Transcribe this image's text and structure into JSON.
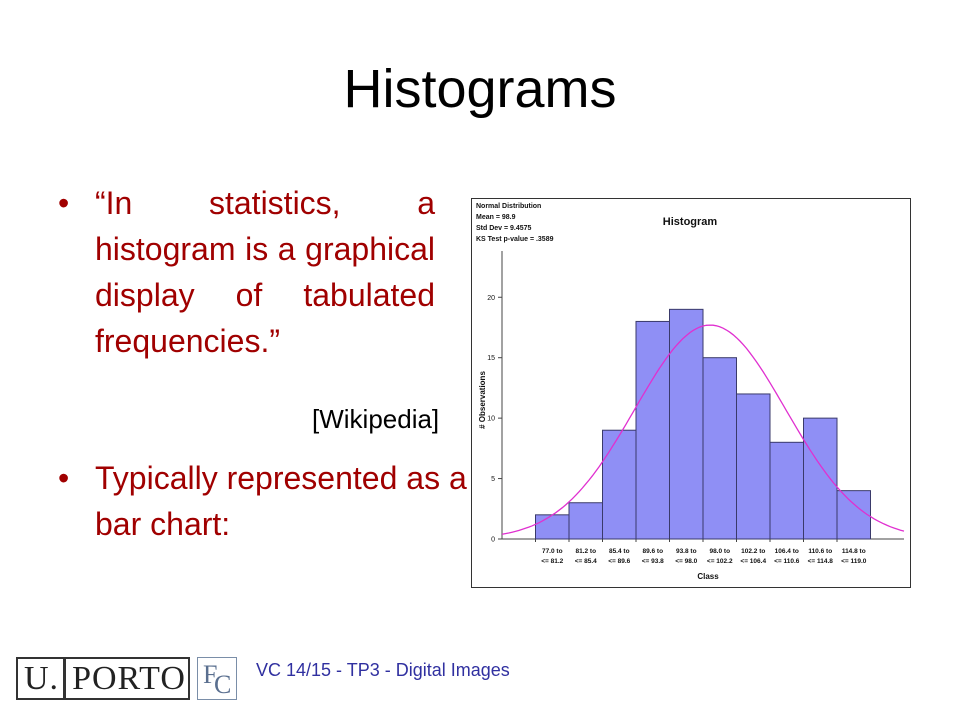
{
  "slide": {
    "title": "Histograms",
    "bullets": [
      {
        "marker": "•",
        "text": "“In statistics, a histogram is a graphical display of tabulated frequencies.”"
      },
      {
        "marker": "•",
        "text": "Typically represented as a bar chart:"
      }
    ],
    "citation": "[Wikipedia]"
  },
  "footer": {
    "logo_u": "U.",
    "logo_porto": "PORTO",
    "logo_fc_f": "F",
    "logo_fc_c": "C",
    "text": "VC 14/15 - TP3 - Digital Images"
  },
  "chart_data": {
    "type": "bar",
    "title": "Histogram",
    "stats_lines": [
      "Normal Distribution",
      "Mean = 98.9",
      "Std Dev = 9.4575",
      "KS Test p-value = .3589"
    ],
    "xlabel": "Class",
    "ylabel": "# Observations",
    "categories": [
      [
        "77.0 to",
        "<= 81.2"
      ],
      [
        "81.2 to",
        "<= 85.4"
      ],
      [
        "85.4 to",
        "<= 89.6"
      ],
      [
        "89.6 to",
        "<= 93.8"
      ],
      [
        "93.8 to",
        "<= 98.0"
      ],
      [
        "98.0 to",
        "<= 102.2"
      ],
      [
        "102.2 to",
        "<= 106.4"
      ],
      [
        "106.4 to",
        "<= 110.6"
      ],
      [
        "110.6 to",
        "<= 114.8"
      ],
      [
        "114.8 to",
        "<= 119.0"
      ]
    ],
    "values": [
      2,
      3,
      9,
      18,
      19,
      15,
      12,
      8,
      10,
      4
    ],
    "yticks": [
      0,
      5,
      10,
      15,
      20
    ],
    "ylim": [
      0,
      23
    ],
    "bar_color": "#8f8ff5",
    "bar_edge": "#3a3a6a",
    "curve_color": "#e030d0",
    "curve": {
      "mean": 98.9,
      "sd": 9.4575,
      "peak": 17.7
    }
  }
}
